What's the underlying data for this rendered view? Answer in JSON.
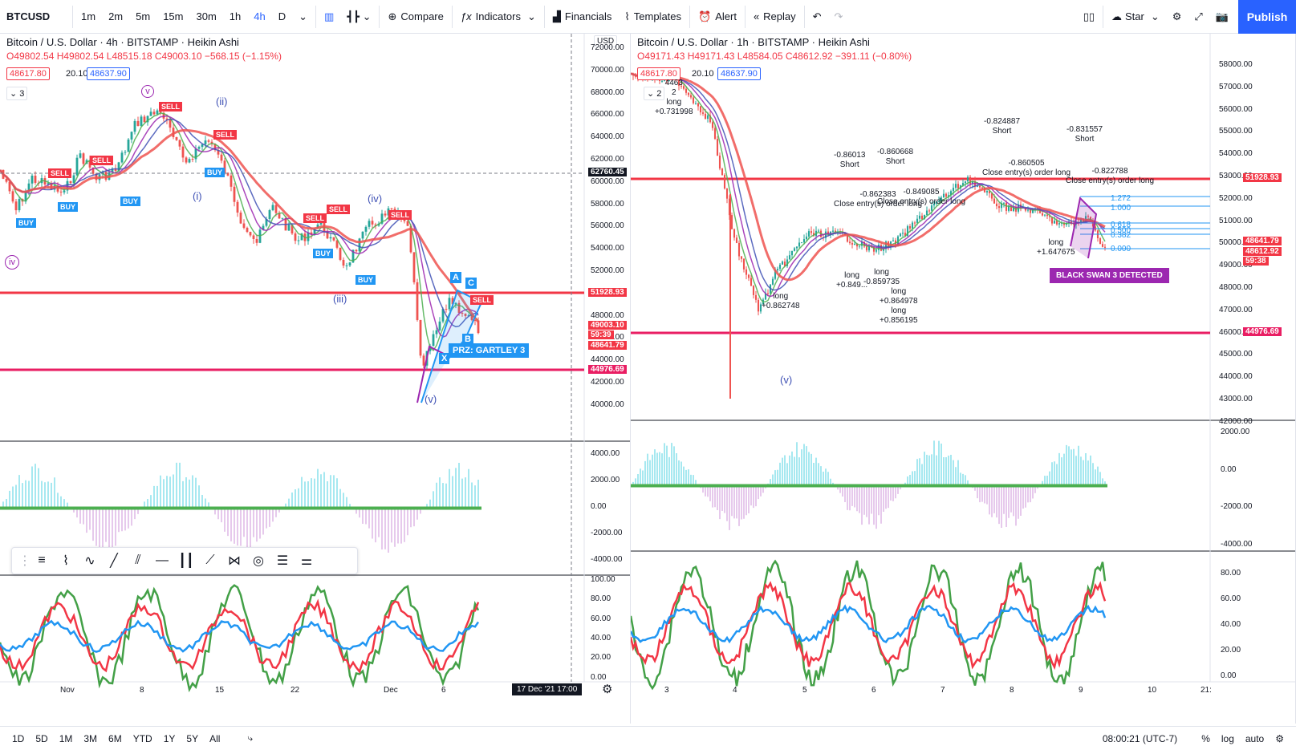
{
  "toolbar": {
    "symbol": "BTCUSD",
    "intervals": [
      "1m",
      "2m",
      "5m",
      "15m",
      "30m",
      "1h",
      "4h",
      "D"
    ],
    "active_interval": "4h",
    "compare": "Compare",
    "indicators": "Indicators",
    "financials": "Financials",
    "templates": "Templates",
    "alert": "Alert",
    "replay": "Replay",
    "star": "Star",
    "publish": "Publish"
  },
  "left_chart": {
    "title": "Bitcoin / U.S. Dollar · 4h · BITSTAMP · Heikin Ashi",
    "ohlc": "O49802.54 H49802.54 L48515.18 C49003.10 −568.15 (−1.15%)",
    "bid": "48617.80",
    "spread": "20.10",
    "ask": "48637.90",
    "indicator_count": "3",
    "currency": "USD",
    "price_axis": [
      "72000.00",
      "70000.00",
      "68000.00",
      "66000.00",
      "64000.00",
      "62000.00",
      "60000.00",
      "58000.00",
      "56000.00",
      "54000.00",
      "52000.00",
      "50000.00",
      "48000.00",
      "46000.00",
      "44000.00",
      "42000.00",
      "40000.00"
    ],
    "price_tags": {
      "crosshair": "62760.45",
      "resistance": "51928.93",
      "current": "49003.10",
      "countdown": "59:39",
      "other": "48641.79",
      "support": "44976.69"
    },
    "osc_axis": [
      "4000.00",
      "2000.00",
      "0.00",
      "-2000.00",
      "-4000.00"
    ],
    "rsi_axis": [
      "100.00",
      "80.00",
      "60.00",
      "40.00",
      "20.00",
      "0.00"
    ],
    "time_axis": [
      "Nov",
      "8",
      "15",
      "22",
      "Dec",
      "6"
    ],
    "time_label": "17 Dec '21   17:00",
    "waves": {
      "v": "v",
      "ii": "(ii)",
      "i": "(i)",
      "iv_top": "(iv)",
      "iii": "(iii)",
      "iv_left": "iv",
      "v_bottom": "(v)"
    },
    "pattern_label": "PRZ: GARTLEY 3",
    "sell": "SELL",
    "buy": "BUY",
    "pattern_points": {
      "a": "A",
      "c": "C",
      "b": "B",
      "x": "X"
    }
  },
  "right_chart": {
    "title": "Bitcoin / U.S. Dollar · 1h · BITSTAMP · Heikin Ashi",
    "ohlc": "O49171.43 H49171.43 L48584.05 C48612.92 −391.11 (−0.80%)",
    "bid": "48617.80",
    "spread": "20.10",
    "ask": "48637.90",
    "indicator_count": "2",
    "price_axis": [
      "58000.00",
      "57000.00",
      "56000.00",
      "55000.00",
      "54000.00",
      "53000.00",
      "52000.00",
      "51000.00",
      "50000.00",
      "49000.00",
      "48000.00",
      "47000.00",
      "46000.00",
      "45000.00",
      "44000.00",
      "43000.00",
      "42000.00"
    ],
    "price_tags": {
      "resistance": "51928.93",
      "other": "48641.79",
      "current": "48612.92",
      "countdown": "59:38",
      "support": "44976.69"
    },
    "osc_axis": [
      "2000.00",
      "0.00",
      "-2000.00",
      "-4000.00"
    ],
    "rsi_axis": [
      "80.00",
      "60.00",
      "40.00",
      "20.00",
      "0.00"
    ],
    "time_axis": [
      "3",
      "4",
      "5",
      "6",
      "7",
      "8",
      "9",
      "10",
      "21:"
    ],
    "fib_levels": [
      "1.272",
      "1.000",
      "0.618",
      "0.500",
      "0.382",
      "0.000"
    ],
    "black_swan": "BLACK SWAN 3 DETECTED",
    "wave_v": "(v)",
    "annotations": [
      {
        "text": "-0.824887\nShort"
      },
      {
        "text": "-0.831557\nShort"
      },
      {
        "text": "-0.86013\nShort"
      },
      {
        "text": "-0.860668\nShort"
      },
      {
        "text": "-0.860505\nClose entry(s) order long"
      },
      {
        "text": "-0.822788\nClose entry(s) order long"
      },
      {
        "text": "-0.862383\nClose entry(s) order long"
      },
      {
        "text": "-0.849085\nClose entry(s) order long"
      },
      {
        "text": "long\n+0.862748"
      },
      {
        "text": "long\n+0.849..."
      },
      {
        "text": "long\n-0.859735"
      },
      {
        "text": "long\n+0.864978\nlong\n+0.856195"
      },
      {
        "text": "long\n+1.647675"
      },
      {
        "text": "4463\n2\nlong\n+0.731998"
      }
    ]
  },
  "bottombar": {
    "ranges": [
      "1D",
      "5D",
      "1M",
      "3M",
      "6M",
      "YTD",
      "1Y",
      "5Y",
      "All"
    ],
    "clock": "08:00:21 (UTC-7)",
    "percent": "%",
    "log": "log",
    "auto": "auto"
  },
  "colors": {
    "red": "#f23645",
    "green": "#089981",
    "blue": "#2962ff",
    "magenta": "#e91e63",
    "purple": "#9c27b0"
  }
}
